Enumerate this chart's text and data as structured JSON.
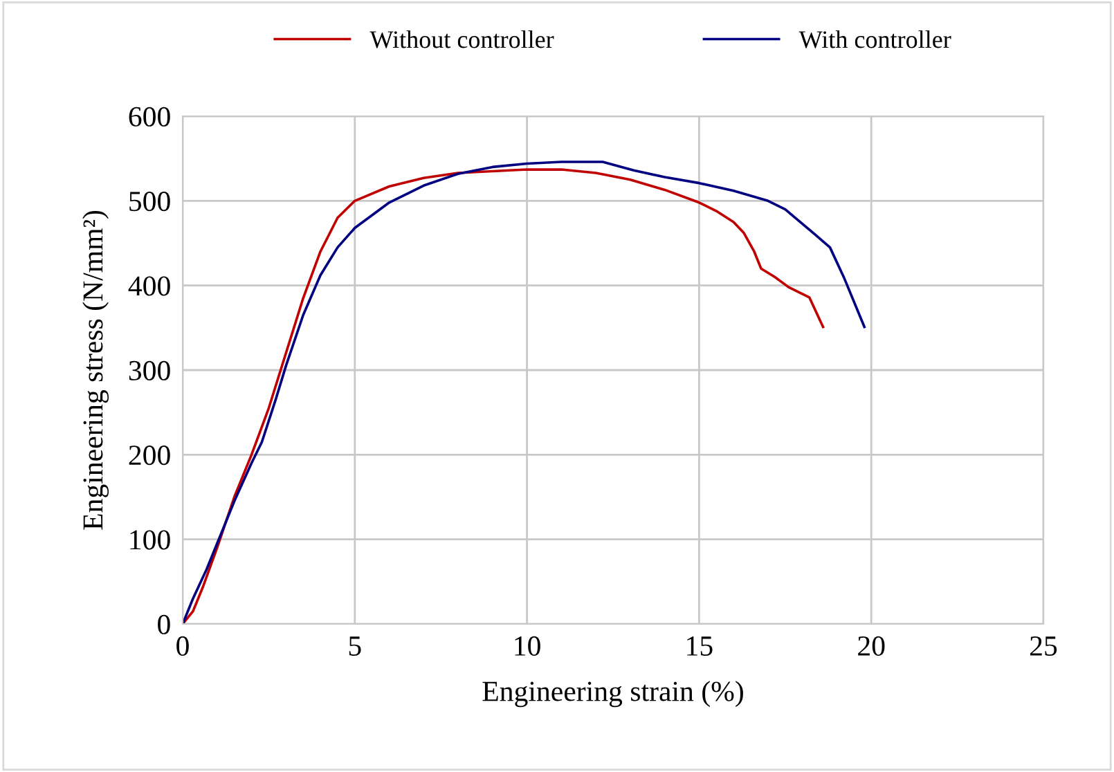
{
  "chart_data": {
    "type": "line",
    "xlabel": "Engineering strain (%)",
    "ylabel": "Engineering stress (N/mm²)",
    "xlim": [
      0,
      25
    ],
    "xticks": [
      0,
      5,
      10,
      15,
      20,
      25
    ],
    "ylim": [
      0,
      600
    ],
    "yticks": [
      0,
      100,
      200,
      300,
      400,
      500,
      600
    ],
    "grid": true,
    "legend": "top",
    "marker": "none",
    "line_style": "solid",
    "series": [
      {
        "name": "Without controller",
        "color": "#c00000",
        "x": [
          0,
          0.3,
          0.6,
          1,
          1.5,
          2,
          2.5,
          3,
          3.5,
          4,
          4.5,
          5,
          6,
          7,
          8,
          10,
          11,
          12,
          13,
          14,
          15,
          15.5,
          16,
          16.3,
          16.6,
          16.8,
          17.2,
          17.6,
          18.2,
          18.6
        ],
        "values": [
          0,
          15,
          45,
          90,
          150,
          200,
          255,
          320,
          385,
          440,
          480,
          500,
          517,
          527,
          533,
          537,
          537,
          533,
          525,
          513,
          498,
          488,
          475,
          462,
          440,
          420,
          410,
          398,
          386,
          351
        ]
      },
      {
        "name": "With controller",
        "color": "#000080",
        "x": [
          0,
          0.3,
          0.7,
          1,
          1.5,
          2,
          2.3,
          2.7,
          3,
          3.5,
          4,
          4.5,
          5,
          6,
          7,
          8,
          9,
          10,
          11,
          12.2,
          13.1,
          14,
          15,
          16,
          17,
          17.5,
          18.4,
          18.8,
          19.2,
          19.8
        ],
        "values": [
          0,
          30,
          65,
          95,
          145,
          190,
          215,
          265,
          305,
          365,
          412,
          445,
          468,
          498,
          518,
          532,
          540,
          544,
          546,
          546,
          536,
          528,
          521,
          512,
          500,
          490,
          459,
          445,
          410,
          351
        ]
      }
    ]
  }
}
